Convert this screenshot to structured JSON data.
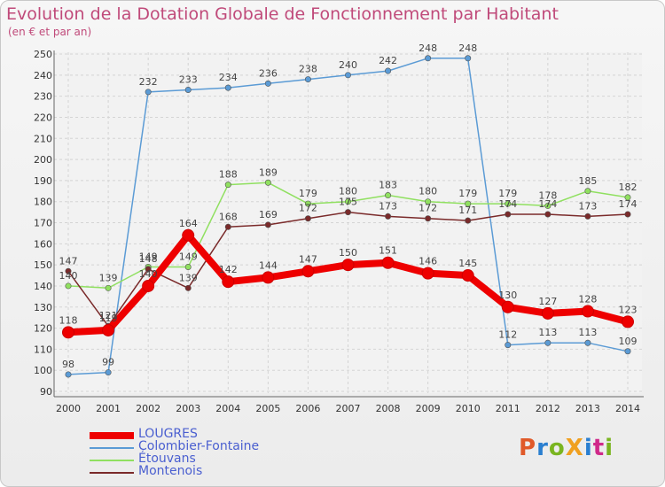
{
  "header": {
    "title": "Evolution de la Dotation Globale de Fonctionnement par Habitant",
    "subtitle": "(en € et par an)"
  },
  "logo": {
    "text": "ProXiti",
    "colors": [
      "#e05a2a",
      "#2a7fd0",
      "#7ab520",
      "#f0a020",
      "#2a7fd0",
      "#d02a8a",
      "#7ab520"
    ]
  },
  "chart_data": {
    "type": "line",
    "x": [
      "2000",
      "2001",
      "2002",
      "2003",
      "2004",
      "2005",
      "2006",
      "2007",
      "2008",
      "2009",
      "2010",
      "2011",
      "2012",
      "2013",
      "2014"
    ],
    "ylim": [
      90,
      250
    ],
    "yticks": [
      90,
      100,
      110,
      120,
      130,
      140,
      150,
      160,
      170,
      180,
      190,
      200,
      210,
      220,
      230,
      240,
      250
    ],
    "grid": true,
    "legend_position": "bottom-left",
    "series": [
      {
        "name": "LOUGRES",
        "color": "#ee0000",
        "values": [
          118,
          119,
          140,
          164,
          142,
          144,
          147,
          150,
          151,
          146,
          145,
          130,
          127,
          128,
          123
        ]
      },
      {
        "name": "Colombier-Fontaine",
        "color": "#5b9bd5",
        "values": [
          98,
          99,
          232,
          233,
          234,
          236,
          238,
          240,
          242,
          248,
          248,
          112,
          113,
          113,
          109
        ]
      },
      {
        "name": "Étouvans",
        "color": "#90e060",
        "values": [
          140,
          139,
          149,
          149,
          188,
          189,
          179,
          180,
          183,
          180,
          179,
          179,
          178,
          185,
          182
        ]
      },
      {
        "name": "Montenois",
        "color": "#7a2a2a",
        "values": [
          147,
          121,
          148,
          139,
          168,
          169,
          172,
          175,
          173,
          172,
          171,
          174,
          174,
          173,
          174
        ]
      }
    ]
  }
}
